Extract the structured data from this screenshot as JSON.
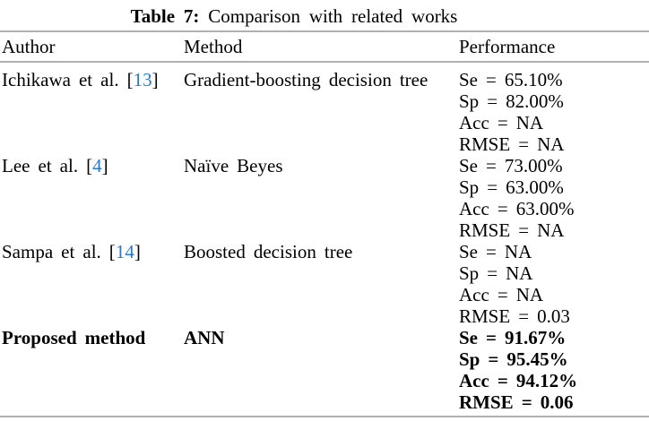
{
  "caption": {
    "label": "Table 7:",
    "text": "Comparison with related works"
  },
  "columns": {
    "author": "Author",
    "method": "Method",
    "performance": "Performance"
  },
  "rows": [
    {
      "author": {
        "pre": "Ichikawa et al. [",
        "cite": "13",
        "post": "]"
      },
      "method": "Gradient-boosting decision tree",
      "performance": [
        "Se = 65.10%",
        "Sp = 82.00%",
        "Acc = NA",
        "RMSE = NA"
      ]
    },
    {
      "author": {
        "pre": "Lee et al. [",
        "cite": "4",
        "post": "]"
      },
      "method": "Naïve Beyes",
      "performance": [
        "Se = 73.00%",
        "Sp = 63.00%",
        "Acc = 63.00%",
        "RMSE = NA"
      ]
    },
    {
      "author": {
        "pre": "Sampa et al. [",
        "cite": "14",
        "post": "]"
      },
      "method": "Boosted decision tree",
      "performance": [
        "Se = NA",
        "Sp = NA",
        "Acc = NA",
        "RMSE = 0.03"
      ]
    },
    {
      "author": {
        "pre": "Proposed method",
        "cite": "",
        "post": ""
      },
      "method": "ANN",
      "performance": [
        "Se = 91.67%",
        "Sp = 95.45%",
        "Acc = 94.12%",
        "RMSE = 0.06"
      ]
    }
  ],
  "colors": {
    "citation": "#2878c8",
    "rule": "#b0b0b0",
    "text": "#000000"
  }
}
